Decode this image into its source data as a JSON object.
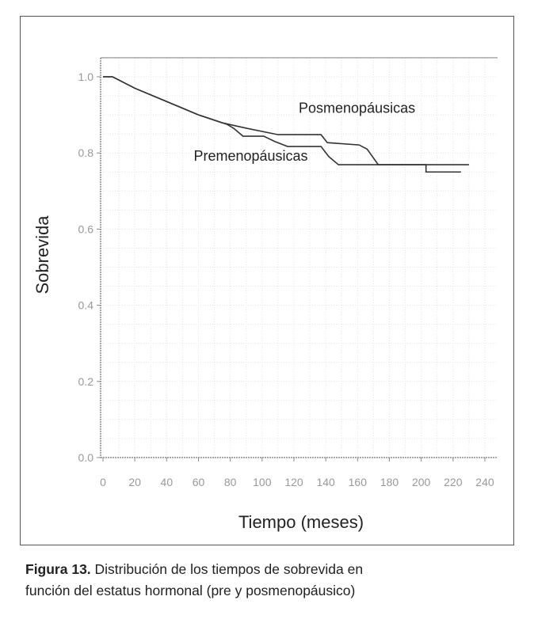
{
  "chart_data": {
    "type": "line",
    "title": "",
    "xlabel": "Tiempo (meses)",
    "ylabel": "Sobrevida",
    "xlim": [
      0,
      248
    ],
    "ylim": [
      0,
      1.05
    ],
    "xticks": [
      0,
      20,
      40,
      60,
      80,
      100,
      120,
      140,
      160,
      180,
      200,
      220,
      240
    ],
    "yticks": [
      "0.0",
      "0.2",
      "0.4",
      "0.6",
      "0.8",
      "1.0"
    ],
    "grid": true,
    "series": [
      {
        "name": "Posmenopáusicas",
        "step": true,
        "x": [
          0,
          6,
          20,
          40,
          60,
          75,
          90,
          110,
          137,
          141,
          161,
          166,
          173,
          203,
          203,
          225
        ],
        "y": [
          1.0,
          1.0,
          0.97,
          0.935,
          0.9,
          0.879,
          0.865,
          0.848,
          0.848,
          0.827,
          0.821,
          0.81,
          0.769,
          0.769,
          0.75,
          0.75
        ]
      },
      {
        "name": "Premenopáusicas",
        "step": true,
        "x": [
          0,
          6,
          20,
          40,
          60,
          78,
          82,
          88,
          101,
          108,
          116,
          137,
          142,
          148,
          230
        ],
        "y": [
          1.0,
          1.0,
          0.97,
          0.935,
          0.9,
          0.875,
          0.865,
          0.844,
          0.844,
          0.83,
          0.817,
          0.817,
          0.79,
          0.769,
          0.769
        ]
      }
    ],
    "annotations": [
      {
        "text": "Posmenopáusicas",
        "x": 123,
        "y": 0.905
      },
      {
        "text": "Premenopáusicas",
        "x": 57,
        "y": 0.78
      }
    ]
  },
  "caption": {
    "label": "Figura 13.",
    "line1": " Distribución de los tiempos de sobrevida en",
    "line2": "función del estatus hormonal (pre y posmenopáusico)"
  },
  "colors": {
    "line": "#333333",
    "axis": "#8a8a8a",
    "grid": "#e4e4e4"
  }
}
